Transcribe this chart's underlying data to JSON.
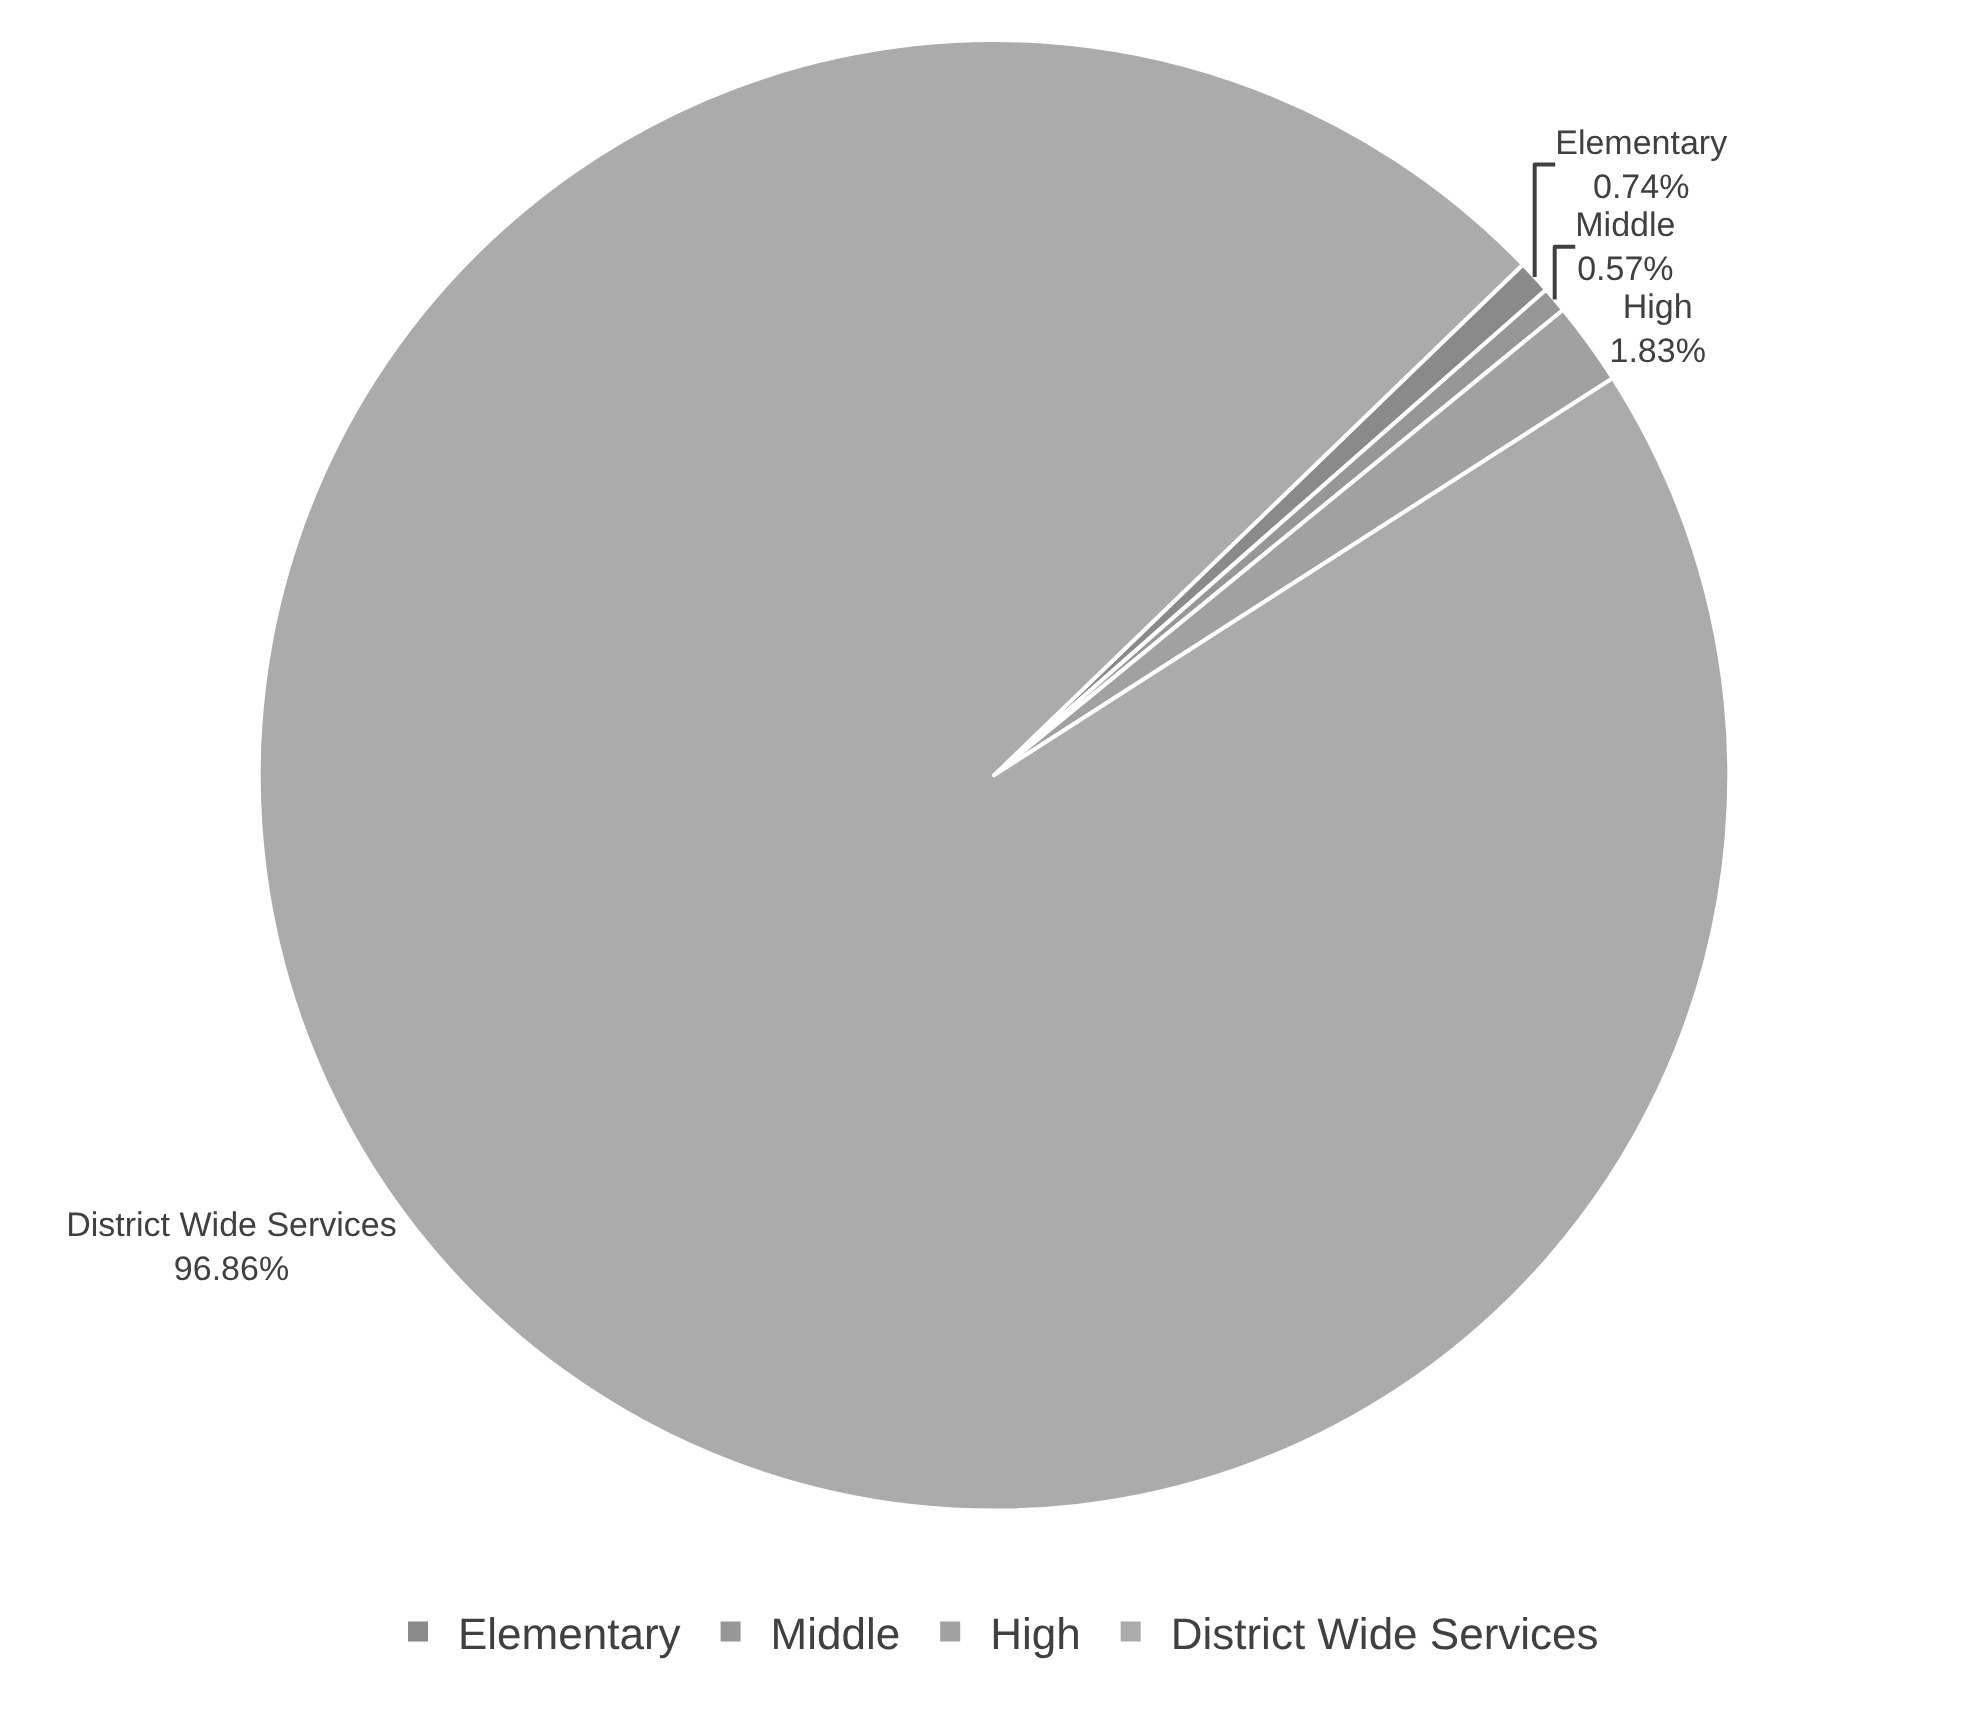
{
  "chart_data": {
    "type": "pie",
    "categories": [
      "Elementary",
      "Middle",
      "High",
      "District Wide Services"
    ],
    "values": [
      0.74,
      0.57,
      1.83,
      96.86
    ],
    "value_labels": [
      "0.74%",
      "0.57%",
      "1.83%",
      "96.86%"
    ],
    "colors": [
      "#8a8a8a",
      "#979797",
      "#a1a1a1",
      "#ababab"
    ],
    "legend": "bottom"
  }
}
